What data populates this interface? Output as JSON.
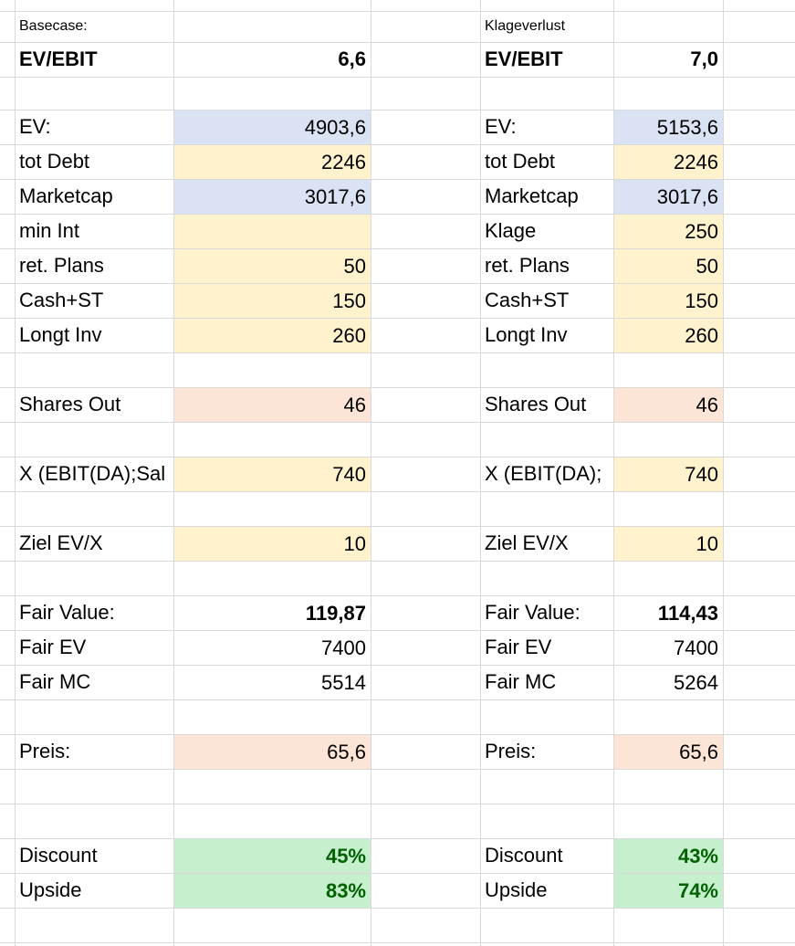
{
  "sheets": [
    {
      "title": "Basecase:",
      "header": {
        "label": "EV/EBIT",
        "value": "6,6"
      },
      "rows": [
        {
          "label": "EV:",
          "value": "4903,6",
          "fill": "#dae3f3"
        },
        {
          "label": "tot Debt",
          "value": "2246",
          "fill": "#fff2cc"
        },
        {
          "label": "Marketcap",
          "value": "3017,6",
          "fill": "#dae3f3"
        },
        {
          "label": "min Int",
          "value": null,
          "fill": "#fff2cc"
        },
        {
          "label": "ret. Plans",
          "value": "50",
          "fill": "#fff2cc"
        },
        {
          "label": "Cash+ST",
          "value": "150",
          "fill": "#fff2cc"
        },
        {
          "label": "Longt Inv",
          "value": "260",
          "fill": "#fff2cc"
        },
        null,
        {
          "label": "Shares Out",
          "value": "46",
          "fill": "#fce4d6"
        },
        null,
        {
          "label": "X (EBIT(DA);Sal",
          "value": "740",
          "fill": "#fff2cc"
        },
        null,
        {
          "label": "Ziel EV/X",
          "value": "10",
          "fill": "#fff2cc"
        },
        null,
        {
          "label": "Fair Value:",
          "value": "119,87",
          "bold": true
        },
        {
          "label": "Fair EV",
          "value": "7400"
        },
        {
          "label": "Fair MC",
          "value": "5514"
        },
        null,
        {
          "label": "Preis:",
          "value": "65,6",
          "fill": "#fce4d6"
        },
        null,
        null,
        {
          "label": "Discount",
          "value": "45%",
          "fill": "#c6efce",
          "bold": true,
          "color": "#006100"
        },
        {
          "label": "Upside",
          "value": "83%",
          "fill": "#c6efce",
          "bold": true,
          "color": "#006100"
        }
      ]
    },
    {
      "title": "Klageverlust",
      "header": {
        "label": "EV/EBIT",
        "value": "7,0"
      },
      "rows": [
        {
          "label": "EV:",
          "value": "5153,6",
          "fill": "#dae3f3"
        },
        {
          "label": "tot Debt",
          "value": "2246",
          "fill": "#fff2cc"
        },
        {
          "label": "Marketcap",
          "value": "3017,6",
          "fill": "#dae3f3"
        },
        {
          "label": "Klage",
          "value": "250",
          "fill": "#fff2cc"
        },
        {
          "label": "ret. Plans",
          "value": "50",
          "fill": "#fff2cc"
        },
        {
          "label": "Cash+ST",
          "value": "150",
          "fill": "#fff2cc"
        },
        {
          "label": "Longt Inv",
          "value": "260",
          "fill": "#fff2cc"
        },
        null,
        {
          "label": "Shares Out",
          "value": "46",
          "fill": "#fce4d6"
        },
        null,
        {
          "label": "X (EBIT(DA);",
          "value": "740",
          "fill": "#fff2cc"
        },
        null,
        {
          "label": "Ziel EV/X",
          "value": "10",
          "fill": "#fff2cc"
        },
        null,
        {
          "label": "Fair Value:",
          "value": "114,43",
          "bold": true
        },
        {
          "label": "Fair EV",
          "value": "7400"
        },
        {
          "label": "Fair MC",
          "value": "5264"
        },
        null,
        {
          "label": "Preis:",
          "value": "65,6",
          "fill": "#fce4d6"
        },
        null,
        null,
        {
          "label": "Discount",
          "value": "43%",
          "fill": "#c6efce",
          "bold": true,
          "color": "#006100"
        },
        {
          "label": "Upside",
          "value": "74%",
          "fill": "#c6efce",
          "bold": true,
          "color": "#006100"
        }
      ]
    }
  ]
}
